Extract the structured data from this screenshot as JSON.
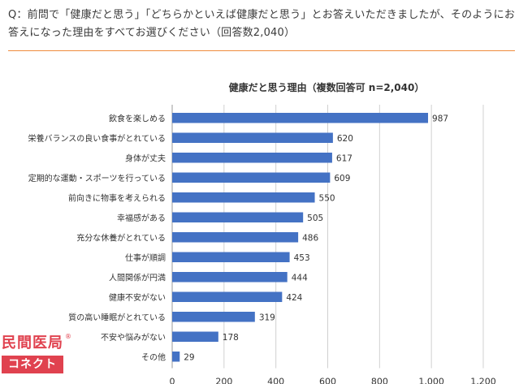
{
  "question": {
    "text": "Q：前問で「健康だと思う」「どちらかといえば健康だと思う」とお答えいただきましたが、そのようにお答えになった理由をすべてお選びください（回答数2,040）"
  },
  "logo": {
    "top_text": "民間医局",
    "bottom_text": "コネクト",
    "reg_mark": "®"
  },
  "colors": {
    "bar": "#4472c4",
    "accent_rule": "#f08c3c",
    "brand": "#e0424f"
  },
  "chart_data": {
    "type": "bar",
    "orientation": "horizontal",
    "title": "健康だと思う理由（複数回答可 n=2,040）",
    "categories": [
      "飲食を楽しめる",
      "栄養バランスの良い食事がとれている",
      "身体が丈夫",
      "定期的な運動・スポーツを行っている",
      "前向きに物事を考えられる",
      "幸福感がある",
      "充分な休養がとれている",
      "仕事が順調",
      "人間関係が円満",
      "健康不安がない",
      "質の高い睡眠がとれている",
      "不安や悩みがない",
      "その他"
    ],
    "values": [
      987,
      620,
      617,
      609,
      550,
      505,
      486,
      453,
      444,
      424,
      319,
      178,
      29
    ],
    "value_labels": [
      "987",
      "620",
      "617",
      "609",
      "550",
      "505",
      "486",
      "453",
      "444",
      "424",
      "319",
      "178",
      "29"
    ],
    "xlim": [
      0,
      1200
    ],
    "xticks": [
      0,
      200,
      400,
      600,
      800,
      1000,
      1200
    ],
    "xtick_labels": [
      "0",
      "200",
      "400",
      "600",
      "800",
      "1,000",
      "1,200"
    ],
    "grid": "vertical"
  }
}
